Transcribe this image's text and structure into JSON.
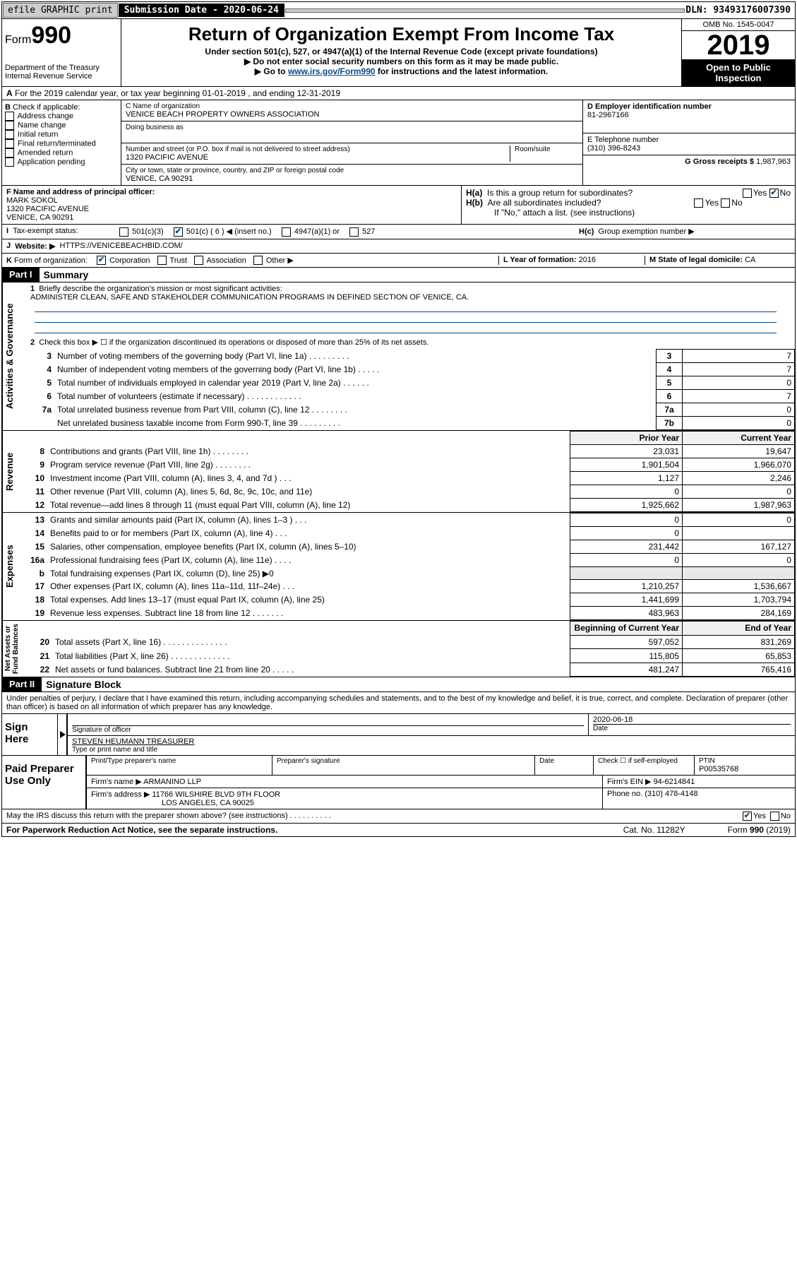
{
  "top": {
    "efile": "efile GRAPHIC print",
    "submission": "Submission Date - 2020-06-24",
    "dln": "DLN: 93493176007390"
  },
  "header": {
    "form": "Form",
    "form_no": "990",
    "dept": "Department of the Treasury Internal Revenue Service",
    "title": "Return of Organization Exempt From Income Tax",
    "sub1": "Under section 501(c), 527, or 4947(a)(1) of the Internal Revenue Code (except private foundations)",
    "sub2": "▶ Do not enter social security numbers on this form as it may be made public.",
    "sub3_pre": "▶ Go to ",
    "sub3_link": "www.irs.gov/Form990",
    "sub3_post": " for instructions and the latest information.",
    "omb": "OMB No. 1545-0047",
    "year": "2019",
    "open": "Open to Public Inspection"
  },
  "a": {
    "text": "For the 2019 calendar year, or tax year beginning 01-01-2019   , and ending 12-31-2019"
  },
  "b": {
    "label": "Check if applicable:",
    "opts": [
      "Address change",
      "Name change",
      "Initial return",
      "Final return/terminated",
      "Amended return",
      "Application pending"
    ]
  },
  "c": {
    "name_label": "C Name of organization",
    "name": "VENICE BEACH PROPERTY OWNERS ASSOCIATION",
    "dba_label": "Doing business as",
    "addr_label": "Number and street (or P.O. box if mail is not delivered to street address)",
    "room": "Room/suite",
    "addr": "1320 PACIFIC AVENUE",
    "city_label": "City or town, state or province, country, and ZIP or foreign postal code",
    "city": "VENICE, CA  90291"
  },
  "d": {
    "label": "D Employer identification number",
    "val": "81-2967166"
  },
  "e": {
    "label": "E Telephone number",
    "val": "(310) 396-8243"
  },
  "g": {
    "label": "G Gross receipts $",
    "val": "1,987,963"
  },
  "f": {
    "label": "F  Name and address of principal officer:",
    "name": "MARK SOKOL",
    "addr": "1320 PACIFIC AVENUE",
    "city": "VENICE, CA  90291"
  },
  "h": {
    "a": "Is this a group return for subordinates?",
    "b": "Are all subordinates included?",
    "b_note": "If \"No,\" attach a list. (see instructions)",
    "c": "Group exemption number ▶"
  },
  "i": {
    "label": "Tax-exempt status:",
    "opts": [
      "501(c)(3)",
      "501(c) ( 6 ) ◀ (insert no.)",
      "4947(a)(1) or",
      "527"
    ]
  },
  "j": {
    "label": "Website: ▶",
    "val": "HTTPS://VENICEBEACHBID.COM/"
  },
  "k": {
    "label": "Form of organization:",
    "opts": [
      "Corporation",
      "Trust",
      "Association",
      "Other ▶"
    ]
  },
  "l": {
    "label": "L Year of formation:",
    "val": "2016"
  },
  "m": {
    "label": "M State of legal domicile:",
    "val": "CA"
  },
  "part1": {
    "title": "Part I",
    "subtitle": "Summary",
    "l1_label": "Briefly describe the organization's mission or most significant activities:",
    "l1_text": "ADMINISTER CLEAN, SAFE AND STAKEHOLDER COMMUNICATION PROGRAMS IN DEFINED SECTION OF VENICE, CA.",
    "l2": "Check this box ▶ ☐  if the organization discontinued its operations or disposed of more than 25% of its net assets.",
    "rows_gov": [
      {
        "n": "3",
        "t": "Number of voting members of the governing body (Part VI, line 1a)  .  .  .  .  .  .  .  .  .",
        "k": "3",
        "v": "7"
      },
      {
        "n": "4",
        "t": "Number of independent voting members of the governing body (Part VI, line 1b)  .  .  .  .  .",
        "k": "4",
        "v": "7"
      },
      {
        "n": "5",
        "t": "Total number of individuals employed in calendar year 2019 (Part V, line 2a)  .  .  .  .  .  .",
        "k": "5",
        "v": "0"
      },
      {
        "n": "6",
        "t": "Total number of volunteers (estimate if necessary)  .  .  .  .  .  .  .  .  .  .  .  .",
        "k": "6",
        "v": "7"
      },
      {
        "n": "7a",
        "t": "Total unrelated business revenue from Part VIII, column (C), line 12  .  .  .  .  .  .  .  .",
        "k": "7a",
        "v": "0"
      },
      {
        "n": "",
        "t": "Net unrelated business taxable income from Form 990-T, line 39  .  .  .  .  .  .  .  .  .",
        "k": "7b",
        "v": "0"
      }
    ],
    "col_prior": "Prior Year",
    "col_current": "Current Year",
    "rows_rev": [
      {
        "n": "8",
        "t": "Contributions and grants (Part VIII, line 1h)  .  .  .  .  .  .  .  .",
        "p": "23,031",
        "c": "19,647"
      },
      {
        "n": "9",
        "t": "Program service revenue (Part VIII, line 2g)  .  .  .  .  .  .  .  .",
        "p": "1,901,504",
        "c": "1,966,070"
      },
      {
        "n": "10",
        "t": "Investment income (Part VIII, column (A), lines 3, 4, and 7d )  .  .  .",
        "p": "1,127",
        "c": "2,246"
      },
      {
        "n": "11",
        "t": "Other revenue (Part VIII, column (A), lines 5, 6d, 8c, 9c, 10c, and 11e)",
        "p": "0",
        "c": "0"
      },
      {
        "n": "12",
        "t": "Total revenue—add lines 8 through 11 (must equal Part VIII, column (A), line 12)",
        "p": "1,925,662",
        "c": "1,987,963"
      }
    ],
    "rows_exp": [
      {
        "n": "13",
        "t": "Grants and similar amounts paid (Part IX, column (A), lines 1–3 )  .  .  .",
        "p": "0",
        "c": "0"
      },
      {
        "n": "14",
        "t": "Benefits paid to or for members (Part IX, column (A), line 4)  .  .  .",
        "p": "0",
        "c": ""
      },
      {
        "n": "15",
        "t": "Salaries, other compensation, employee benefits (Part IX, column (A), lines 5–10)",
        "p": "231,442",
        "c": "167,127"
      },
      {
        "n": "16a",
        "t": "Professional fundraising fees (Part IX, column (A), line 11e)  .  .  .  .",
        "p": "0",
        "c": "0"
      },
      {
        "n": "b",
        "t": "Total fundraising expenses (Part IX, column (D), line 25) ▶0",
        "p": "",
        "c": ""
      },
      {
        "n": "17",
        "t": "Other expenses (Part IX, column (A), lines 11a–11d, 11f–24e)  .  .  .",
        "p": "1,210,257",
        "c": "1,536,667"
      },
      {
        "n": "18",
        "t": "Total expenses. Add lines 13–17 (must equal Part IX, column (A), line 25)",
        "p": "1,441,699",
        "c": "1,703,794"
      },
      {
        "n": "19",
        "t": "Revenue less expenses. Subtract line 18 from line 12  .  .  .  .  .  .  .",
        "p": "483,963",
        "c": "284,169"
      }
    ],
    "col_begin": "Beginning of Current Year",
    "col_end": "End of Year",
    "rows_net": [
      {
        "n": "20",
        "t": "Total assets (Part X, line 16)  .  .  .  .  .  .  .  .  .  .  .  .  .  .",
        "p": "597,052",
        "c": "831,269"
      },
      {
        "n": "21",
        "t": "Total liabilities (Part X, line 26)  .  .  .  .  .  .  .  .  .  .  .  .  .",
        "p": "115,805",
        "c": "65,853"
      },
      {
        "n": "22",
        "t": "Net assets or fund balances. Subtract line 21 from line 20  .  .  .  .  .",
        "p": "481,247",
        "c": "765,416"
      }
    ]
  },
  "part2": {
    "title": "Part II",
    "subtitle": "Signature Block",
    "decl": "Under penalties of perjury, I declare that I have examined this return, including accompanying schedules and statements, and to the best of my knowledge and belief, it is true, correct, and complete. Declaration of preparer (other than officer) is based on all information of which preparer has any knowledge.",
    "sign_here": "Sign Here",
    "sig_officer": "Signature of officer",
    "date": "2020-06-18",
    "date_label": "Date",
    "name_title": "STEVEN HEUMANN  TREASURER",
    "name_title_label": "Type or print name and title",
    "paid": "Paid Preparer Use Only",
    "prep_name_label": "Print/Type preparer's name",
    "prep_sig_label": "Preparer's signature",
    "prep_date": "Date",
    "check_self": "Check ☐ if self-employed",
    "ptin_label": "PTIN",
    "ptin": "P00535768",
    "firm_name_label": "Firm's name   ▶",
    "firm_name": "ARMANINO LLP",
    "firm_ein_label": "Firm's EIN ▶",
    "firm_ein": "94-6214841",
    "firm_addr_label": "Firm's address ▶",
    "firm_addr": "11766 WILSHIRE BLVD 9TH FLOOR",
    "firm_city": "LOS ANGELES, CA  90025",
    "phone_label": "Phone no.",
    "phone": "(310) 478-4148",
    "discuss": "May the IRS discuss this return with the preparer shown above? (see instructions)  .  .  .  .  .  .  .  .  .  ."
  },
  "footer": {
    "left": "For Paperwork Reduction Act Notice, see the separate instructions.",
    "mid": "Cat. No. 11282Y",
    "right": "Form 990 (2019)"
  }
}
